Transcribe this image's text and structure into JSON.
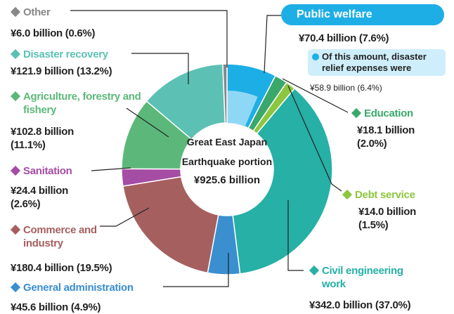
{
  "chart_data": {
    "type": "donut",
    "center_label": "Great East Japan Earthquake portion",
    "total_label": "¥925.6 billion",
    "categories": [
      "Public welfare",
      "Education",
      "Debt service",
      "Civil engineering work",
      "General administration",
      "Commerce and industry",
      "Sanitation",
      "Agriculture, forestry and fishery",
      "Disaster recovery",
      "Other"
    ],
    "values": [
      70.4,
      18.1,
      14.0,
      342.0,
      45.6,
      180.4,
      24.4,
      102.8,
      121.9,
      6.0
    ],
    "value_labels": [
      "¥70.4 billion (7.6%)",
      "¥18.1 billion (2.0%)",
      "¥14.0 billion (1.5%)",
      "¥342.0 billion (37.0%)",
      "¥45.6 billion (4.9%)",
      "¥180.4 billion (19.5%)",
      "¥24.4 billion (2.6%)",
      "¥102.8 billion (11.1%)",
      "¥121.9 billion (13.2%)",
      "¥6.0 billion (0.6%)"
    ],
    "colors": [
      "#1eaee6",
      "#3aa86b",
      "#8cc63f",
      "#26b0a6",
      "#3a8fcf",
      "#a65f5f",
      "#a54ca5",
      "#5cb87a",
      "#5cc1b4",
      "#888888"
    ],
    "annotation": {
      "text": "Of this amount, disaster relief expenses were",
      "value": 58.9,
      "value_label": "¥58.9 billion (6.4%)",
      "color": "#8fd8f5"
    }
  }
}
